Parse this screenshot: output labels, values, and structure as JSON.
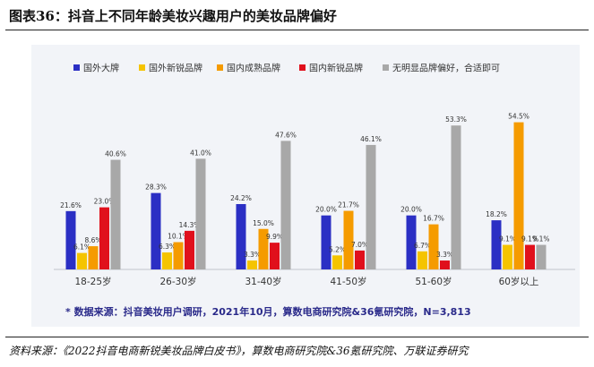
{
  "figure_title": "图表36：抖音上不同年龄美妆兴趣用户的美妆品牌偏好",
  "source": "资料来源：《2022抖音电商新锐美妆品牌白皮书》，算数电商研究院&36氪研究院、万联证券研究",
  "colors": {
    "series": [
      "#2b2fc4",
      "#f5c400",
      "#f59b00",
      "#e0101c",
      "#a8a8a8"
    ],
    "label": "#333333",
    "note": "#2a2a8a",
    "axis": "#c0c4cc"
  },
  "chart_data": {
    "type": "bar",
    "title": "",
    "xlabel": "",
    "ylabel": "",
    "ylim": [
      0,
      60
    ],
    "categories": [
      "18-25岁",
      "26-30岁",
      "31-40岁",
      "41-50岁",
      "51-60岁",
      "60岁以上"
    ],
    "series": [
      {
        "name": "国外大牌",
        "values": [
          21.6,
          28.3,
          24.2,
          20.0,
          20.0,
          18.2
        ],
        "labels": [
          "21.6%",
          "28.3%",
          "24.2%",
          "20.0%",
          "20.0%",
          "18.2%"
        ]
      },
      {
        "name": "国外新锐品牌",
        "values": [
          6.1,
          6.3,
          3.3,
          5.2,
          6.7,
          9.1
        ],
        "labels": [
          "6.1%",
          "6.3%",
          "3.3%",
          "5.2%",
          "6.7%",
          "9.1%"
        ]
      },
      {
        "name": "国内成熟品牌",
        "values": [
          8.6,
          10.1,
          15.0,
          21.7,
          16.7,
          54.5
        ],
        "labels": [
          "8.6%",
          "10.1%",
          "15.0%",
          "21.7%",
          "16.7%",
          "54.5%"
        ]
      },
      {
        "name": "国内新锐品牌",
        "values": [
          23.0,
          14.3,
          9.9,
          7.0,
          3.3,
          9.1
        ],
        "labels": [
          "23.0%",
          "14.3%",
          "9.9%",
          "7.0%",
          "3.3%",
          "9.1%"
        ]
      },
      {
        "name": "无明显品牌偏好，合适即可",
        "values": [
          40.6,
          41.0,
          47.6,
          46.1,
          53.3,
          9.1
        ],
        "labels": [
          "40.6%",
          "41.0%",
          "47.6%",
          "46.1%",
          "53.3%",
          "9.1%"
        ]
      }
    ],
    "legend_position": "top",
    "note": "* 数据来源：抖音美妆用户调研，2021年10月，算数电商研究院&36氪研究院，N=3,813"
  }
}
